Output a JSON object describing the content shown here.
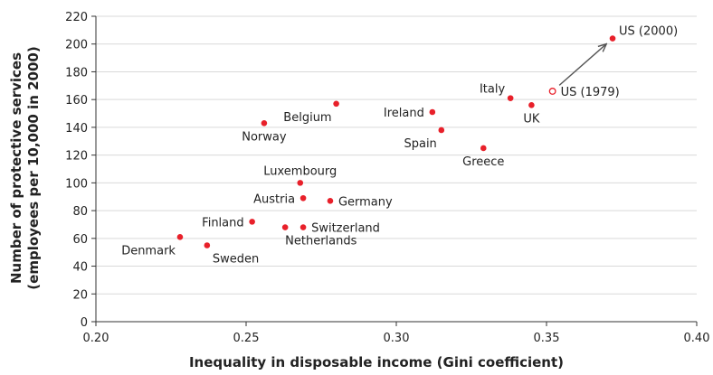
{
  "colors": {
    "point": "#e8202a",
    "arrow": "#555555",
    "grid": "#d9d9d9"
  },
  "chart_data": {
    "type": "scatter",
    "xlabel": "Inequality in disposable income (Gini coefficient)",
    "ylabel_line1": "Number of protective services",
    "ylabel_line2": "(employees per 10,000 in 2000)",
    "xlim": [
      0.2,
      0.4
    ],
    "ylim": [
      0,
      220
    ],
    "xticks": [
      0.2,
      0.25,
      0.3,
      0.35,
      0.4
    ],
    "xtick_labels": [
      "0.20",
      "0.25",
      "0.30",
      "0.35",
      "0.40"
    ],
    "yticks": [
      0,
      20,
      40,
      60,
      80,
      100,
      120,
      140,
      160,
      180,
      200,
      220
    ],
    "ytick_labels": [
      "0",
      "20",
      "40",
      "60",
      "80",
      "100",
      "120",
      "140",
      "160",
      "180",
      "200",
      "220"
    ],
    "grid": "horizontal",
    "points": [
      {
        "label": "Denmark",
        "x": 0.228,
        "y": 61,
        "anchor": "end",
        "pos": "below-left"
      },
      {
        "label": "Sweden",
        "x": 0.237,
        "y": 55,
        "anchor": "start",
        "pos": "below-right"
      },
      {
        "label": "Finland",
        "x": 0.252,
        "y": 72,
        "anchor": "end",
        "pos": "left"
      },
      {
        "label": "Netherlands",
        "x": 0.263,
        "y": 68,
        "anchor": "start",
        "pos": "below"
      },
      {
        "label": "Switzerland",
        "x": 0.269,
        "y": 68,
        "anchor": "start",
        "pos": "right"
      },
      {
        "label": "Austria",
        "x": 0.269,
        "y": 89,
        "anchor": "end",
        "pos": "left"
      },
      {
        "label": "Germany",
        "x": 0.278,
        "y": 87,
        "anchor": "start",
        "pos": "right"
      },
      {
        "label": "Luxembourg",
        "x": 0.268,
        "y": 100,
        "anchor": "middle",
        "pos": "above"
      },
      {
        "label": "Norway",
        "x": 0.256,
        "y": 143,
        "anchor": "middle",
        "pos": "below"
      },
      {
        "label": "Belgium",
        "x": 0.28,
        "y": 157,
        "anchor": "end",
        "pos": "below-left"
      },
      {
        "label": "Ireland",
        "x": 0.312,
        "y": 151,
        "anchor": "end",
        "pos": "left"
      },
      {
        "label": "Spain",
        "x": 0.315,
        "y": 138,
        "anchor": "end",
        "pos": "below-left"
      },
      {
        "label": "Greece",
        "x": 0.329,
        "y": 125,
        "anchor": "middle",
        "pos": "below"
      },
      {
        "label": "Italy",
        "x": 0.338,
        "y": 161,
        "anchor": "end",
        "pos": "above-left"
      },
      {
        "label": "UK",
        "x": 0.345,
        "y": 156,
        "anchor": "middle",
        "pos": "below"
      },
      {
        "label": "US (1979)",
        "x": 0.352,
        "y": 166,
        "anchor": "start",
        "pos": "right",
        "hollow": true
      },
      {
        "label": "US (2000)",
        "x": 0.372,
        "y": 204,
        "anchor": "start",
        "pos": "above-right"
      }
    ],
    "arrow": {
      "from": [
        0.352,
        166
      ],
      "to": [
        0.372,
        204
      ]
    }
  }
}
